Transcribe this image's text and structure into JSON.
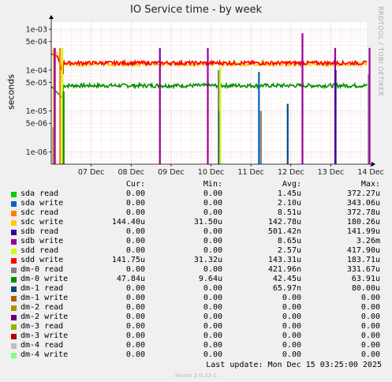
{
  "chart_data": {
    "type": "line",
    "title": "IO Service time - by week",
    "ylabel": "seconds",
    "yscale": "log",
    "ylim": [
      5e-07,
      0.0015
    ],
    "yticks": [
      {
        "v": 1e-06,
        "label": "1e-06"
      },
      {
        "v": 5e-06,
        "label": "5e-06"
      },
      {
        "v": 1e-05,
        "label": "1e-05"
      },
      {
        "v": 5e-05,
        "label": "5e-05"
      },
      {
        "v": 0.0001,
        "label": "1e-04"
      },
      {
        "v": 0.0005,
        "label": "5e-04"
      },
      {
        "v": 0.001,
        "label": "1e-03"
      }
    ],
    "xlim": [
      0,
      7.9
    ],
    "xticks": [
      {
        "v": 1,
        "label": "07 Dec"
      },
      {
        "v": 2,
        "label": "08 Dec"
      },
      {
        "v": 3,
        "label": "09 Dec"
      },
      {
        "v": 4,
        "label": "10 Dec"
      },
      {
        "v": 5,
        "label": "11 Dec"
      },
      {
        "v": 6,
        "label": "12 Dec"
      },
      {
        "v": 7,
        "label": "13 Dec"
      },
      {
        "v": 8,
        "label": "14 Dec"
      }
    ],
    "grid": true,
    "columns": [
      "Cur:",
      "Min:",
      "Avg:",
      "Max:"
    ],
    "series": [
      {
        "name": "sda read",
        "color": "#00cc00",
        "cur": "0.00",
        "min": "0.00",
        "avg": "1.45u",
        "max": "372.27u"
      },
      {
        "name": "sda write",
        "color": "#0066b3",
        "cur": "0.00",
        "min": "0.00",
        "avg": "2.10u",
        "max": "343.06u"
      },
      {
        "name": "sdc read",
        "color": "#ff8000",
        "cur": "0.00",
        "min": "0.00",
        "avg": "8.51u",
        "max": "372.78u"
      },
      {
        "name": "sdc write",
        "color": "#ffcc00",
        "cur": "144.40u",
        "min": "31.50u",
        "avg": "142.78u",
        "max": "180.26u"
      },
      {
        "name": "sdb read",
        "color": "#330099",
        "cur": "0.00",
        "min": "0.00",
        "avg": "501.42n",
        "max": "141.99u"
      },
      {
        "name": "sdb write",
        "color": "#990099",
        "cur": "0.00",
        "min": "0.00",
        "avg": "8.65u",
        "max": "3.26m"
      },
      {
        "name": "sdd read",
        "color": "#ccff00",
        "cur": "0.00",
        "min": "0.00",
        "avg": "2.57u",
        "max": "417.90u"
      },
      {
        "name": "sdd write",
        "color": "#ff0000",
        "cur": "141.75u",
        "min": "31.32u",
        "avg": "143.31u",
        "max": "183.71u"
      },
      {
        "name": "dm-0 read",
        "color": "#808080",
        "cur": "0.00",
        "min": "0.00",
        "avg": "421.96n",
        "max": "331.67u"
      },
      {
        "name": "dm-0 write",
        "color": "#008f00",
        "cur": "47.84u",
        "min": "9.64u",
        "avg": "42.45u",
        "max": "63.91u"
      },
      {
        "name": "dm-1 read",
        "color": "#00487d",
        "cur": "0.00",
        "min": "0.00",
        "avg": "65.97n",
        "max": "80.00u"
      },
      {
        "name": "dm-1 write",
        "color": "#b35a00",
        "cur": "0.00",
        "min": "0.00",
        "avg": "0.00",
        "max": "0.00"
      },
      {
        "name": "dm-2 read",
        "color": "#b38f00",
        "cur": "0.00",
        "min": "0.00",
        "avg": "0.00",
        "max": "0.00"
      },
      {
        "name": "dm-2 write",
        "color": "#6b006b",
        "cur": "0.00",
        "min": "0.00",
        "avg": "0.00",
        "max": "0.00"
      },
      {
        "name": "dm-3 read",
        "color": "#8fb300",
        "cur": "0.00",
        "min": "0.00",
        "avg": "0.00",
        "max": "0.00"
      },
      {
        "name": "dm-3 write",
        "color": "#b30000",
        "cur": "0.00",
        "min": "0.00",
        "avg": "0.00",
        "max": "0.00"
      },
      {
        "name": "dm-4 read",
        "color": "#bebebe",
        "cur": "0.00",
        "min": "0.00",
        "avg": "0.00",
        "max": "0.00"
      },
      {
        "name": "dm-4 write",
        "color": "#80ff80",
        "cur": "0.00",
        "min": "0.00",
        "avg": "0.00",
        "max": "0.00"
      }
    ],
    "traces": {
      "sdd_write": {
        "color": "#ff0000",
        "base": 0.00015,
        "start": 0.3,
        "points": [
          [
            0,
            0.00025
          ],
          [
            0.15,
            0.00022
          ],
          [
            0.3,
            8e-05
          ]
        ]
      },
      "sdc_write": {
        "color": "#ffcc00",
        "base": 0.000142,
        "start": 0.3,
        "points": [
          [
            0,
            0.0003
          ],
          [
            0.15,
            0.00026
          ],
          [
            0.3,
            9e-05
          ]
        ]
      },
      "dm0_write": {
        "color": "#008f00",
        "base": 4.2e-05,
        "start": 0.3,
        "points": [
          [
            0,
            4e-05
          ],
          [
            0.2,
            2.5e-05
          ],
          [
            0.3,
            2e-05
          ]
        ]
      }
    },
    "spikes": [
      {
        "x": 0.05,
        "color": "#808080",
        "top": 4e-06
      },
      {
        "x": 0.07,
        "color": "#ff8000",
        "top": 0.00035
      },
      {
        "x": 0.09,
        "color": "#990099",
        "top": 0.00035
      },
      {
        "x": 0.22,
        "color": "#ff8000",
        "top": 0.00035
      },
      {
        "x": 0.28,
        "color": "#ccff00",
        "top": 0.00035
      },
      {
        "x": 0.31,
        "color": "#008f00",
        "top": 3e-05
      },
      {
        "x": 2.72,
        "color": "#990099",
        "top": 0.00035
      },
      {
        "x": 3.92,
        "color": "#990099",
        "top": 0.00035
      },
      {
        "x": 4.19,
        "color": "#808080",
        "top": 0.0001
      },
      {
        "x": 4.21,
        "color": "#00487d",
        "top": 1e-05
      },
      {
        "x": 4.23,
        "color": "#ccff00",
        "top": 0.00012
      },
      {
        "x": 5.2,
        "color": "#0066b3",
        "top": 9e-05
      },
      {
        "x": 5.25,
        "color": "#808080",
        "top": 1e-05
      },
      {
        "x": 5.92,
        "color": "#00487d",
        "top": 1.5e-05
      },
      {
        "x": 6.29,
        "color": "#990099",
        "top": 0.0008
      },
      {
        "x": 7.11,
        "color": "#990099",
        "top": 0.00035
      },
      {
        "x": 7.12,
        "color": "#330099",
        "top": 0.0001
      },
      {
        "x": 7.95,
        "color": "#808080",
        "top": 8e-05
      },
      {
        "x": 7.97,
        "color": "#990099",
        "top": 0.00035
      }
    ]
  },
  "footer": {
    "last_update": "Last update:  Mon Dec 15 03:25:00 2025",
    "munin": "Munin 2.0.33-1",
    "watermark": "RRDTOOL / TOBI OETIKER"
  }
}
